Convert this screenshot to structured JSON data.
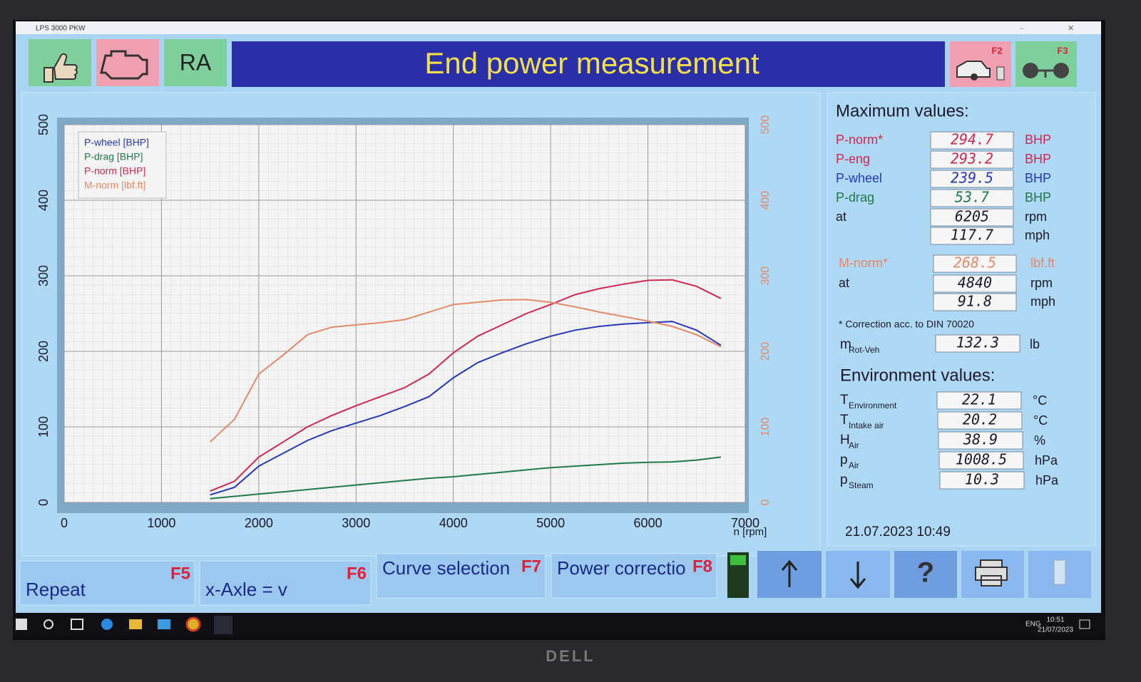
{
  "window": {
    "title": "LPS 3000 PKW"
  },
  "toolbar": {
    "ra": "RA",
    "title": "End power measurement",
    "f2": "F2",
    "f3": "F3"
  },
  "chart_data": {
    "type": "line",
    "x": [
      1500,
      1750,
      2000,
      2250,
      2500,
      2750,
      3000,
      3250,
      3500,
      3750,
      4000,
      4250,
      4500,
      4750,
      5000,
      5250,
      5500,
      5750,
      6000,
      6250,
      6500,
      6750
    ],
    "xlim": [
      0,
      7000
    ],
    "xticks": [
      0,
      1000,
      2000,
      3000,
      4000,
      5000,
      6000,
      7000
    ],
    "xlabel": "n [rpm]",
    "ylim": [
      0,
      500
    ],
    "yticks": [
      0,
      100,
      200,
      300,
      400,
      500
    ],
    "y2lim": [
      0,
      500
    ],
    "y2ticks": [
      0,
      100,
      200,
      300,
      400,
      500
    ],
    "grid": true,
    "legend": "upper left",
    "series": [
      {
        "name": "P-wheel [BHP]",
        "color": "#2838b8",
        "values": [
          10,
          20,
          48,
          65,
          82,
          95,
          105,
          115,
          127,
          140,
          165,
          185,
          198,
          210,
          220,
          228,
          233,
          236,
          238,
          239.5,
          228,
          208
        ]
      },
      {
        "name": "P-drag [BHP]",
        "color": "#1f7a4a",
        "values": [
          5,
          8,
          11,
          14,
          17,
          20,
          23,
          26,
          29,
          32,
          34,
          37,
          40,
          43,
          46,
          48,
          50,
          52,
          53,
          53.7,
          56,
          60
        ]
      },
      {
        "name": "P-norm [BHP]",
        "color": "#d0284e",
        "values": [
          15,
          28,
          60,
          80,
          100,
          115,
          128,
          140,
          152,
          170,
          198,
          220,
          235,
          250,
          262,
          275,
          283,
          289,
          294,
          294.7,
          286,
          270
        ]
      },
      {
        "name": "M-norm [lbf.ft]",
        "color": "#e58a68",
        "axis": "y2",
        "values": [
          80,
          110,
          170,
          195,
          222,
          232,
          235,
          238,
          242,
          252,
          262,
          265,
          268,
          268.5,
          265,
          259,
          252,
          246,
          240,
          233,
          222,
          206
        ]
      }
    ]
  },
  "max_values": {
    "heading": "Maximum values:",
    "rows": [
      {
        "label": "P-norm*",
        "value": "294.7",
        "unit": "BHP",
        "color": "#d0284e"
      },
      {
        "label": "P-eng",
        "value": "293.2",
        "unit": "BHP",
        "color": "#d0284e"
      },
      {
        "label": "P-wheel",
        "value": "239.5",
        "unit": "BHP",
        "color": "#2838b8"
      },
      {
        "label": "P-drag",
        "value": "53.7",
        "unit": "BHP",
        "color": "#1f7a4a"
      },
      {
        "label": "at",
        "value": "6205",
        "unit": "rpm",
        "color": "#1a1a2a"
      },
      {
        "value": "117.7",
        "unit": "mph",
        "color": "#1a1a2a"
      },
      {
        "label": "M-norm*",
        "value": "268.5",
        "unit": "lbf.ft",
        "color": "#e58a68"
      },
      {
        "label": "at",
        "value": "4840",
        "unit": "rpm",
        "color": "#1a1a2a"
      },
      {
        "value": "91.8",
        "unit": "mph",
        "color": "#1a1a2a"
      }
    ]
  },
  "note": "* Correction acc. to DIN 70020",
  "mass": {
    "label": "m",
    "sub": "Rot-Veh",
    "value": "132.3",
    "unit": "lb"
  },
  "environment": {
    "heading": "Environment values:",
    "rows": [
      {
        "label": "T",
        "sub": "Environment",
        "value": "22.1",
        "unit": "°C"
      },
      {
        "label": "T",
        "sub": "Intake air",
        "value": "20.2",
        "unit": "°C"
      },
      {
        "label": "H",
        "sub": "Air",
        "value": "38.9",
        "unit": "%"
      },
      {
        "label": "p",
        "sub": "Air",
        "value": "1008.5",
        "unit": "hPa"
      },
      {
        "label": "p",
        "sub": "Steam",
        "value": "10.3",
        "unit": "hPa"
      }
    ]
  },
  "datetime": "21.07.2023  10:49",
  "function_keys": [
    {
      "label": "Repeat",
      "key": "F5"
    },
    {
      "label": "x-Axle = v",
      "key": "F6"
    },
    {
      "label": "Curve selection",
      "key": "F7"
    },
    {
      "label": "Power correction",
      "key": "F8"
    }
  ],
  "taskbar": {
    "lang": "ENG",
    "time": "10:51",
    "date": "21/07/2023"
  },
  "monitor": "DELL"
}
